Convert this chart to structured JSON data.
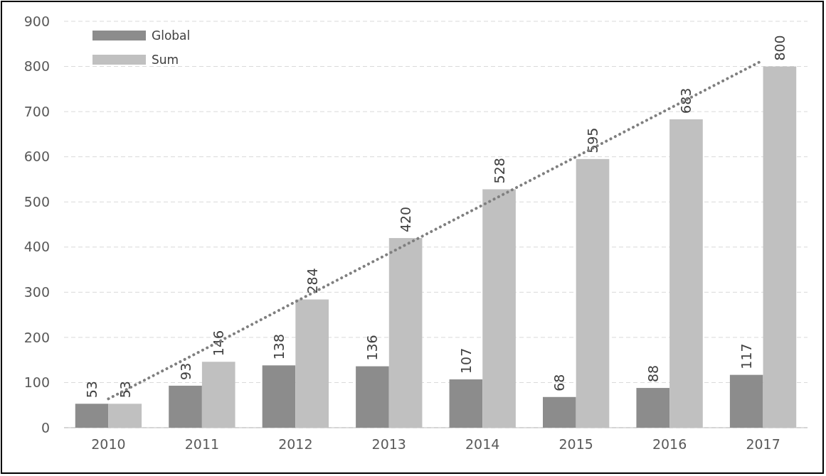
{
  "chart_data": {
    "type": "bar",
    "categories": [
      "2010",
      "2011",
      "2012",
      "2013",
      "2014",
      "2015",
      "2016",
      "2017"
    ],
    "series": [
      {
        "name": "Global",
        "color": "#8c8c8c",
        "values": [
          53,
          93,
          138,
          136,
          107,
          68,
          88,
          117
        ],
        "value_labels": [
          "53",
          "93",
          "138",
          "136",
          "107",
          "68",
          "88",
          "117"
        ]
      },
      {
        "name": "Sum",
        "color": "#c0c0c0",
        "values": [
          53,
          146,
          284,
          420,
          528,
          595,
          683,
          800
        ],
        "value_labels": [
          "53",
          "146",
          "284",
          "420",
          "528",
          "595",
          "683",
          "800"
        ]
      },
      {
        "type": "line",
        "color": "#7f7f7f",
        "line_style": "dotted",
        "values": [
          64,
          171,
          279,
          386,
          493,
          600,
          707,
          814
        ]
      }
    ],
    "ylim": [
      0,
      900
    ],
    "yticks": [
      0,
      100,
      200,
      300,
      400,
      500,
      600,
      700,
      800,
      900
    ],
    "grid": "y",
    "legend": "top left"
  }
}
